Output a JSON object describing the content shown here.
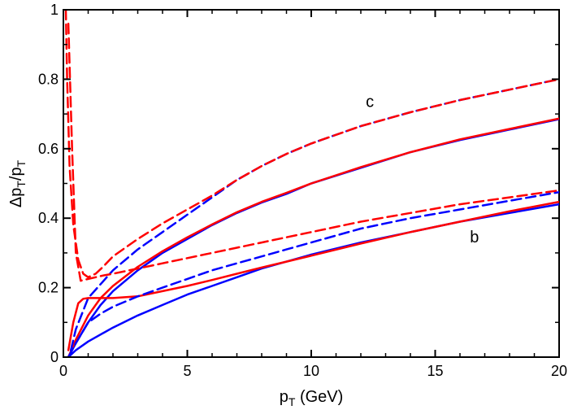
{
  "chart_data": {
    "type": "line",
    "xlabel": "p_T (GeV)",
    "ylabel": "Δp_T/p_T",
    "xlim": [
      0,
      20
    ],
    "ylim": [
      0,
      1
    ],
    "x_ticks": [
      0,
      5,
      10,
      15,
      20
    ],
    "y_ticks": [
      0,
      0.2,
      0.4,
      0.6,
      0.8,
      1
    ],
    "x_tick_labels": [
      "0",
      "5",
      "10",
      "15",
      "20"
    ],
    "y_tick_labels": [
      "0",
      "0.2",
      "0.4",
      "0.6",
      "0.8",
      "1"
    ],
    "grid": false,
    "annotations": [
      {
        "text": "c",
        "x": 12.2,
        "y": 0.72
      },
      {
        "text": "b",
        "x": 16.4,
        "y": 0.33
      }
    ],
    "series": [
      {
        "name": "c solid blue",
        "color": "#0000ff",
        "dash": "solid",
        "x": [
          0.2,
          0.5,
          1,
          1.5,
          2,
          3,
          4,
          5,
          6,
          7,
          8,
          9,
          10,
          12,
          14,
          16,
          18,
          20
        ],
        "y": [
          0.0,
          0.04,
          0.1,
          0.15,
          0.19,
          0.25,
          0.3,
          0.34,
          0.38,
          0.415,
          0.445,
          0.47,
          0.5,
          0.545,
          0.59,
          0.625,
          0.655,
          0.685
        ]
      },
      {
        "name": "c solid red",
        "color": "#ff0000",
        "dash": "solid",
        "x": [
          0.2,
          0.5,
          1,
          1.5,
          2,
          3,
          4,
          5,
          6,
          7,
          8,
          9,
          10,
          12,
          14,
          16,
          18,
          20
        ],
        "y": [
          0.0,
          0.05,
          0.12,
          0.17,
          0.205,
          0.26,
          0.305,
          0.345,
          0.382,
          0.417,
          0.447,
          0.473,
          0.5,
          0.547,
          0.59,
          0.627,
          0.657,
          0.687
        ]
      },
      {
        "name": "c dashed blue",
        "color": "#0000ff",
        "dash": "dashed",
        "x": [
          0.3,
          0.5,
          1,
          1.5,
          2,
          3,
          4,
          5,
          6,
          7,
          8,
          9,
          10,
          12,
          14,
          16,
          18,
          20
        ],
        "y": [
          0.02,
          0.08,
          0.17,
          0.21,
          0.25,
          0.31,
          0.36,
          0.41,
          0.46,
          0.51,
          0.55,
          0.585,
          0.615,
          0.665,
          0.705,
          0.74,
          0.77,
          0.8
        ]
      },
      {
        "name": "c dashed red",
        "color": "#ff0000",
        "dash": "dashed",
        "x": [
          0.1,
          0.15,
          0.25,
          0.4,
          0.6,
          0.8,
          1,
          1.3,
          1.6,
          2,
          3,
          4,
          5,
          6,
          7,
          8,
          9,
          10,
          12,
          14,
          16,
          18,
          20
        ],
        "y": [
          1.0,
          0.8,
          0.55,
          0.38,
          0.28,
          0.24,
          0.23,
          0.24,
          0.26,
          0.29,
          0.34,
          0.385,
          0.425,
          0.465,
          0.51,
          0.55,
          0.585,
          0.615,
          0.665,
          0.705,
          0.74,
          0.77,
          0.8
        ]
      },
      {
        "name": "b solid blue",
        "color": "#0000ff",
        "dash": "solid",
        "x": [
          0.2,
          0.5,
          1,
          2,
          3,
          4,
          5,
          6,
          7,
          8,
          9,
          10,
          12,
          14,
          16,
          18,
          20
        ],
        "y": [
          0.0,
          0.02,
          0.045,
          0.085,
          0.12,
          0.15,
          0.18,
          0.205,
          0.23,
          0.255,
          0.275,
          0.295,
          0.33,
          0.36,
          0.39,
          0.415,
          0.44
        ]
      },
      {
        "name": "b solid red",
        "color": "#ff0000",
        "dash": "solid",
        "x": [
          0.2,
          0.4,
          0.6,
          0.8,
          1,
          1.5,
          2,
          3,
          4,
          5,
          6,
          7,
          8,
          9,
          10,
          12,
          14,
          16,
          18,
          20
        ],
        "y": [
          0.02,
          0.1,
          0.155,
          0.168,
          0.17,
          0.17,
          0.17,
          0.175,
          0.19,
          0.205,
          0.222,
          0.24,
          0.258,
          0.275,
          0.292,
          0.327,
          0.36,
          0.39,
          0.42,
          0.447
        ]
      },
      {
        "name": "b dashed blue",
        "color": "#0000ff",
        "dash": "dashed",
        "x": [
          0.2,
          0.5,
          1,
          1.5,
          2,
          3,
          4,
          5,
          6,
          7,
          8,
          9,
          10,
          12,
          14,
          16,
          18,
          20
        ],
        "y": [
          0.0,
          0.04,
          0.1,
          0.125,
          0.145,
          0.175,
          0.2,
          0.225,
          0.25,
          0.27,
          0.29,
          0.31,
          0.33,
          0.37,
          0.4,
          0.425,
          0.45,
          0.475
        ]
      },
      {
        "name": "b dashed red",
        "color": "#ff0000",
        "dash": "dashed",
        "x": [
          0.2,
          0.35,
          0.5,
          0.7,
          1,
          1.3,
          1.6,
          2,
          3,
          4,
          5,
          6,
          7,
          8,
          9,
          10,
          12,
          14,
          16,
          18,
          20
        ],
        "y": [
          0.96,
          0.6,
          0.3,
          0.22,
          0.225,
          0.23,
          0.235,
          0.24,
          0.255,
          0.27,
          0.285,
          0.3,
          0.315,
          0.33,
          0.345,
          0.36,
          0.39,
          0.415,
          0.44,
          0.46,
          0.48
        ]
      }
    ]
  }
}
